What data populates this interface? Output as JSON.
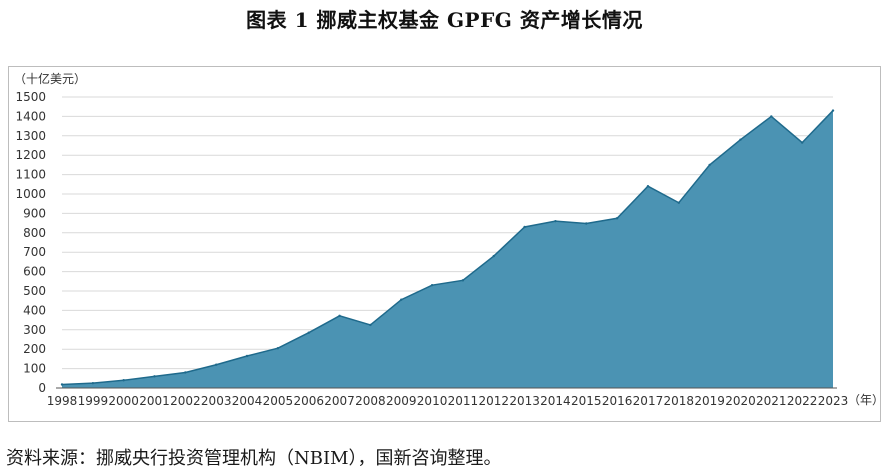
{
  "title": "图表 1  挪威主权基金 GPFG 资产增长情况",
  "source_note": "资料来源：挪威央行投资管理机构（NBIM），国新咨询整理。",
  "colors": {
    "area_fill": "#4b93b3",
    "area_stroke": "#1f6a8c",
    "grid": "#d9d9d9",
    "axis": "#555555"
  },
  "chart_data": {
    "type": "area",
    "title": "",
    "ylabel": "（十亿美元）",
    "xlabel": "（年）",
    "ylim": [
      0,
      1500
    ],
    "ytick_step": 100,
    "grid": true,
    "x": [
      "1998",
      "1999",
      "2000",
      "2001",
      "2002",
      "2003",
      "2004",
      "2005",
      "2006",
      "2007",
      "2008",
      "2009",
      "2010",
      "2011",
      "2012",
      "2013",
      "2014",
      "2015",
      "2016",
      "2017",
      "2018",
      "2019",
      "2020",
      "2021",
      "2022",
      "2023"
    ],
    "series": [
      {
        "name": "GPFG",
        "values": [
          18,
          25,
          40,
          60,
          80,
          120,
          165,
          205,
          285,
          372,
          325,
          455,
          530,
          555,
          680,
          830,
          860,
          848,
          875,
          1040,
          955,
          1150,
          1280,
          1400,
          1265,
          1430
        ]
      }
    ]
  }
}
